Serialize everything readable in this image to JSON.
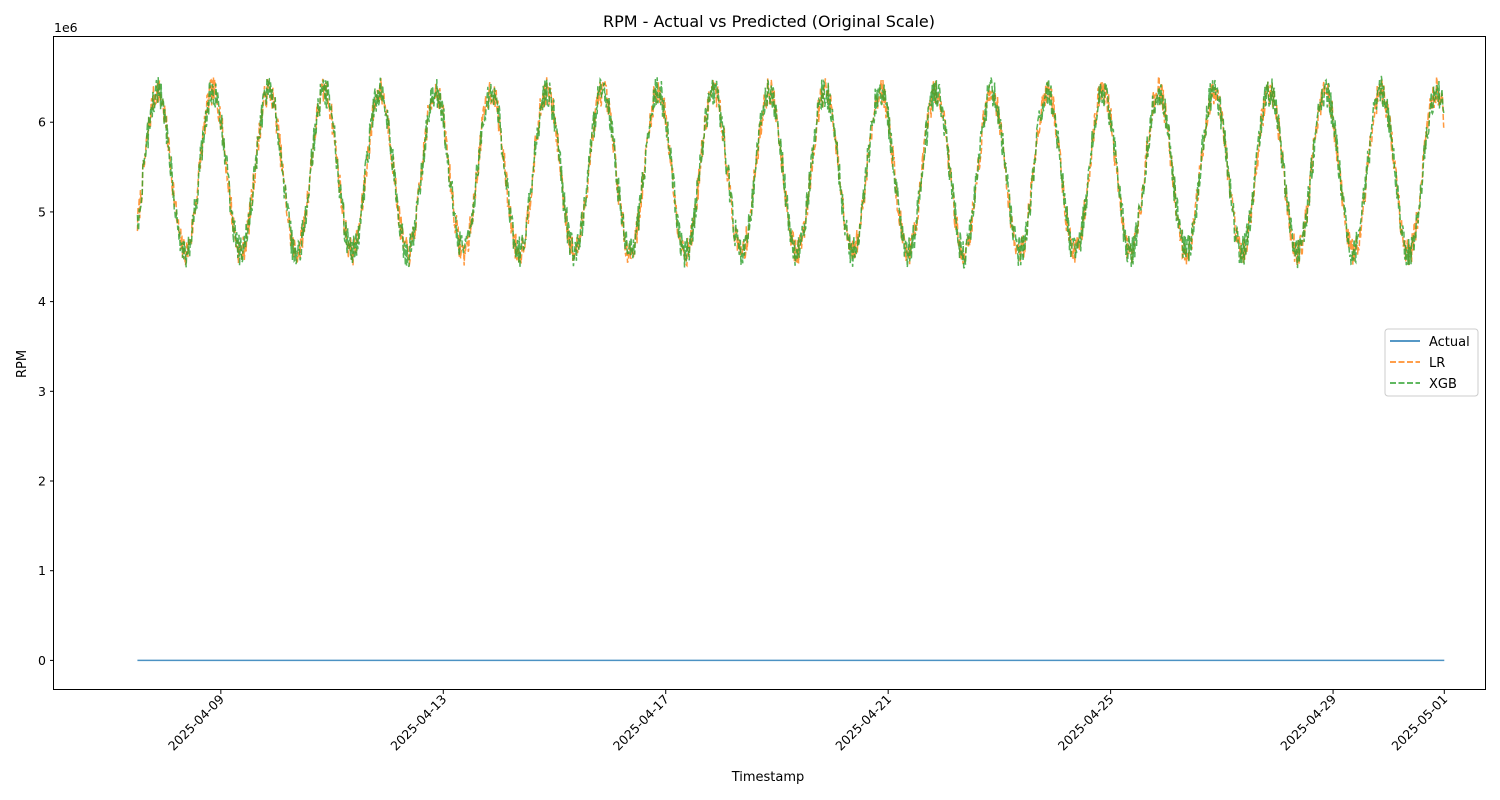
{
  "chart_data": {
    "type": "line",
    "title": "RPM - Actual vs Predicted (Original Scale)",
    "xlabel": "Timestamp",
    "ylabel": "RPM",
    "y_offset_label": "1e6",
    "y_multiplier": 1000000,
    "x_start": "2025-04-07T12:00",
    "x_end": "2025-05-01T00:00",
    "xlim": [
      "2025-04-06T00:00",
      "2025-05-01T18:00"
    ],
    "ylim": [
      -0.33,
      6.95
    ],
    "x_ticks": [
      "2025-04-09",
      "2025-04-13",
      "2025-04-17",
      "2025-04-21",
      "2025-04-25",
      "2025-04-29",
      "2025-05-01"
    ],
    "y_ticks": [
      0,
      1,
      2,
      3,
      4,
      5,
      6
    ],
    "y_tick_labels": [
      "0",
      "1",
      "2",
      "3",
      "4",
      "5",
      "6"
    ],
    "grid": false,
    "legend_position": "center-right",
    "period_days": 1,
    "series": [
      {
        "name": "Actual",
        "style": "solid",
        "color": "#1f77b4",
        "values_note": "constant",
        "y_min": 0,
        "y_max": 0
      },
      {
        "name": "LR",
        "style": "dashed",
        "color": "#ff7f0e",
        "y_min": 4.35,
        "y_max": 6.55,
        "mean": 5.45,
        "amplitude": 0.9
      },
      {
        "name": "XGB",
        "style": "dashed",
        "color": "#2ca02c",
        "y_min": 4.3,
        "y_max": 6.62,
        "mean": 5.45,
        "amplitude": 0.9
      }
    ]
  }
}
